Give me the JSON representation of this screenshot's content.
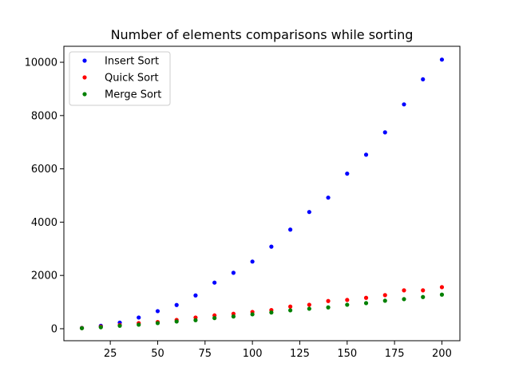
{
  "chart_data": {
    "type": "scatter",
    "title": "Number of elements comparisons while sorting",
    "xlabel": "",
    "ylabel": "",
    "xlim": [
      0.5,
      209.5
    ],
    "ylim": [
      -450,
      10600
    ],
    "xticks": [
      25,
      50,
      75,
      100,
      125,
      150,
      175,
      200
    ],
    "yticks": [
      0,
      2000,
      4000,
      6000,
      8000,
      10000
    ],
    "grid": false,
    "legend_position": "top-left",
    "x": [
      10,
      20,
      30,
      40,
      50,
      60,
      70,
      80,
      90,
      100,
      110,
      120,
      130,
      140,
      150,
      160,
      170,
      180,
      190,
      200
    ],
    "series": [
      {
        "name": "Insert Sort",
        "color": "#0000ff",
        "values": [
          30,
          110,
          230,
          420,
          660,
          890,
          1250,
          1730,
          2100,
          2520,
          3080,
          3720,
          4380,
          4920,
          5820,
          6530,
          7370,
          8420,
          9360,
          10100
        ]
      },
      {
        "name": "Quick Sort",
        "color": "#ff0000",
        "values": [
          25,
          80,
          140,
          210,
          250,
          330,
          420,
          500,
          560,
          630,
          700,
          830,
          900,
          1040,
          1080,
          1160,
          1260,
          1440,
          1440,
          1560
        ]
      },
      {
        "name": "Merge Sort",
        "color": "#008000",
        "values": [
          20,
          55,
          110,
          150,
          210,
          270,
          320,
          400,
          460,
          540,
          610,
          690,
          750,
          800,
          900,
          960,
          1050,
          1110,
          1190,
          1280
        ]
      }
    ]
  }
}
